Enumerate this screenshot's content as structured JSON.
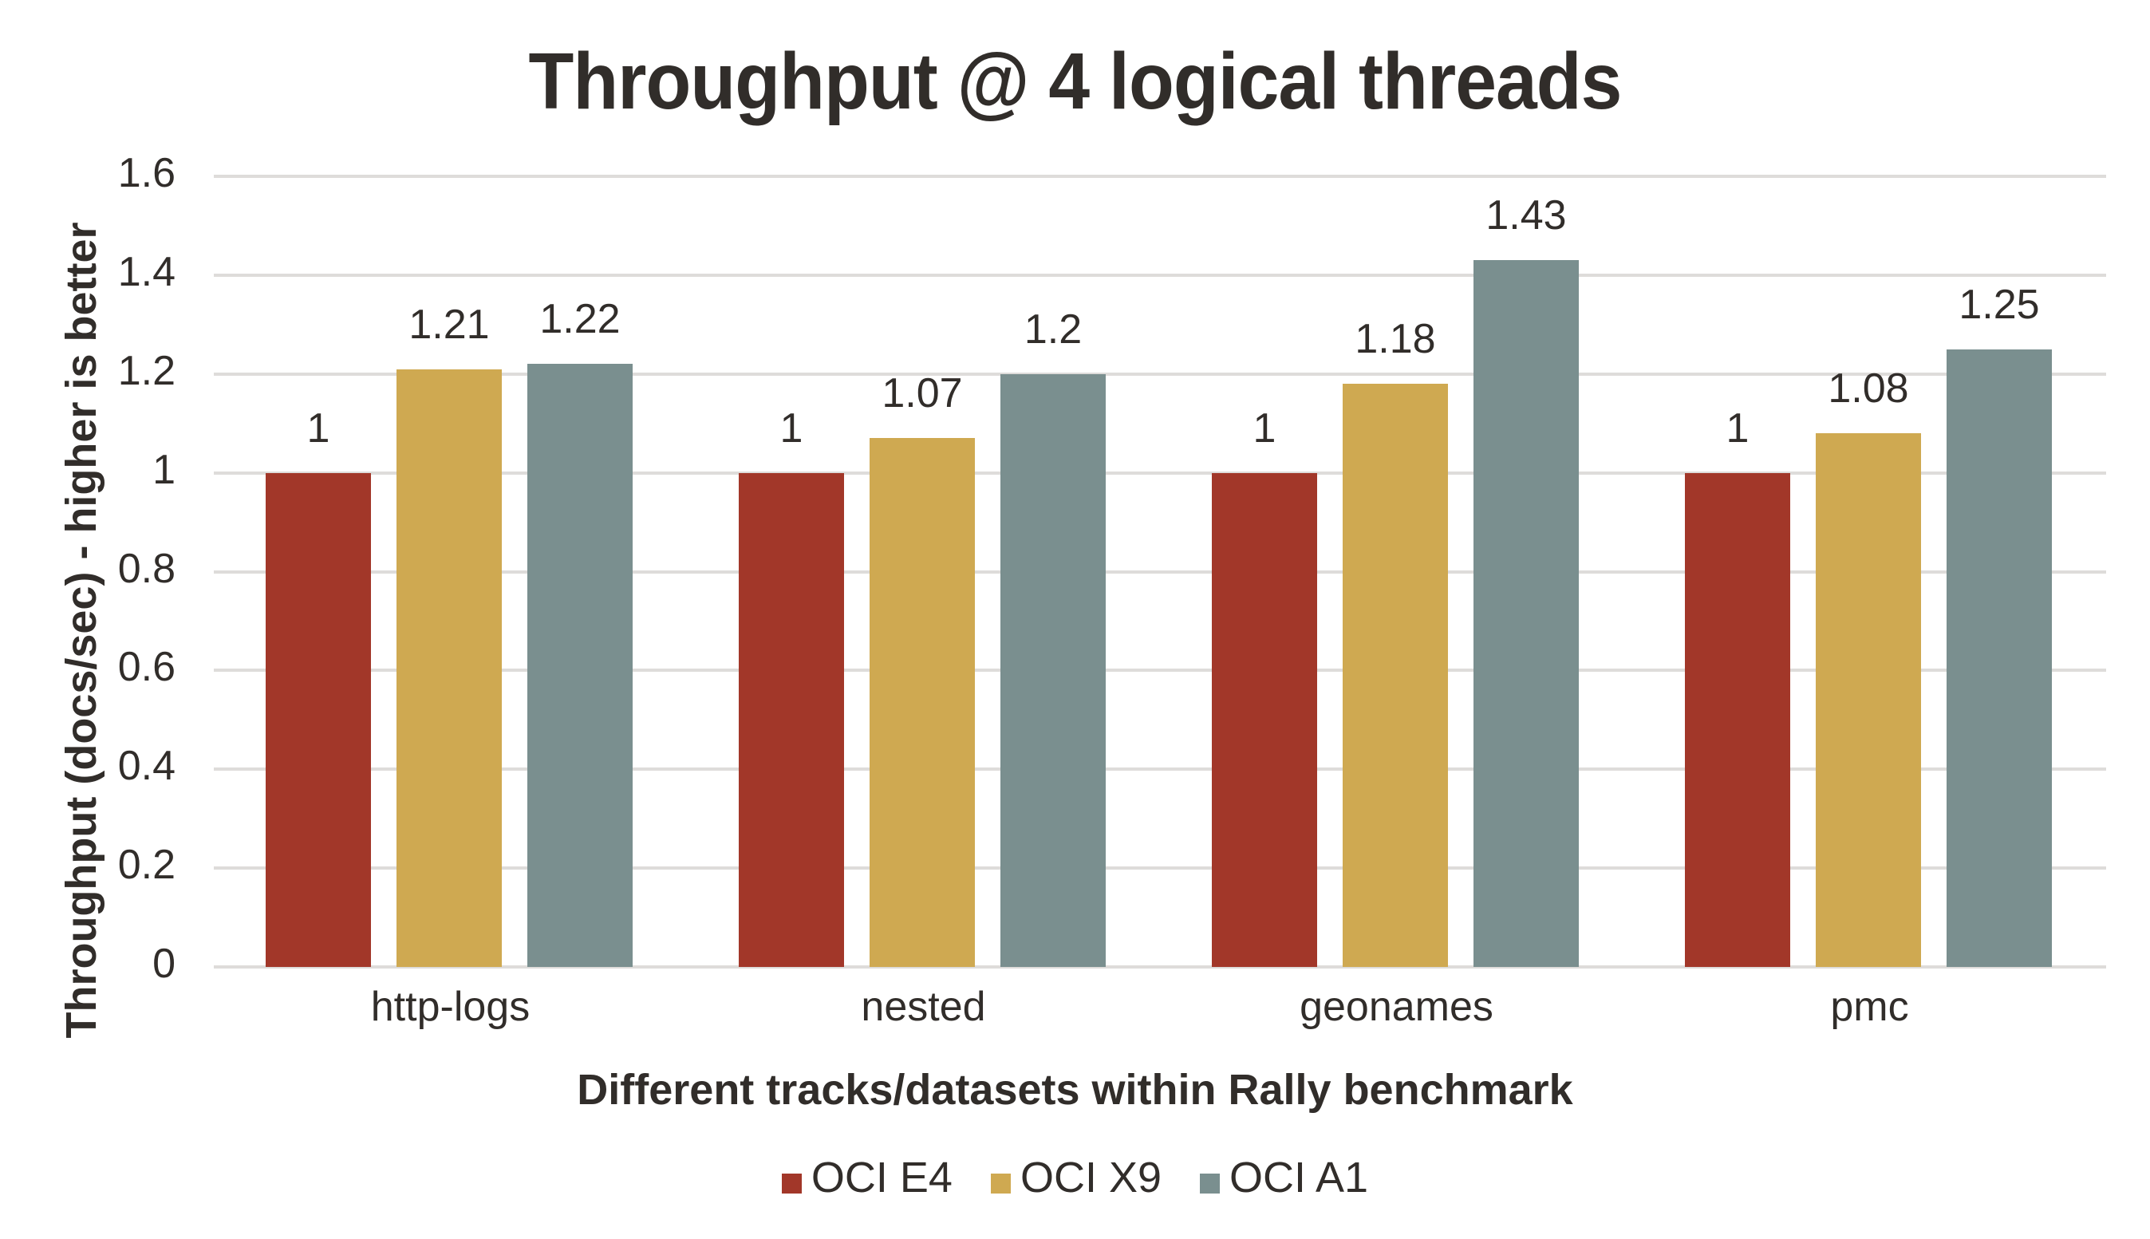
{
  "chart_data": {
    "type": "bar",
    "title": "Throughput @ 4 logical threads",
    "xlabel": "Different tracks/datasets within Rally benchmark",
    "ylabel": "Throughput (docs/sec) - higher is better",
    "categories": [
      "http-logs",
      "nested",
      "geonames",
      "pmc"
    ],
    "series": [
      {
        "name": "OCI E4",
        "color": "#A23729",
        "values": [
          1,
          1,
          1,
          1
        ],
        "labels": [
          "1",
          "1",
          "1",
          "1"
        ]
      },
      {
        "name": "OCI X9",
        "color": "#CFA951",
        "values": [
          1.21,
          1.07,
          1.18,
          1.08
        ],
        "labels": [
          "1.21",
          "1.07",
          "1.18",
          "1.08"
        ]
      },
      {
        "name": "OCI A1",
        "color": "#7A8F8F",
        "values": [
          1.22,
          1.2,
          1.43,
          1.25
        ],
        "labels": [
          "1.22",
          "1.2",
          "1.43",
          "1.25"
        ]
      }
    ],
    "ylim": [
      0,
      1.6
    ],
    "yticks": [
      "0",
      "0.2",
      "0.4",
      "0.6",
      "0.8",
      "1",
      "1.2",
      "1.4",
      "1.6"
    ],
    "ytick_values": [
      0,
      0.2,
      0.4,
      0.6,
      0.8,
      1,
      1.2,
      1.4,
      1.6
    ],
    "grid": true,
    "legend_position": "bottom",
    "data_labels": true
  },
  "colors": {
    "text": "#312D2A",
    "gridline": "#DEDCDA",
    "background": "#FFFFFF"
  }
}
